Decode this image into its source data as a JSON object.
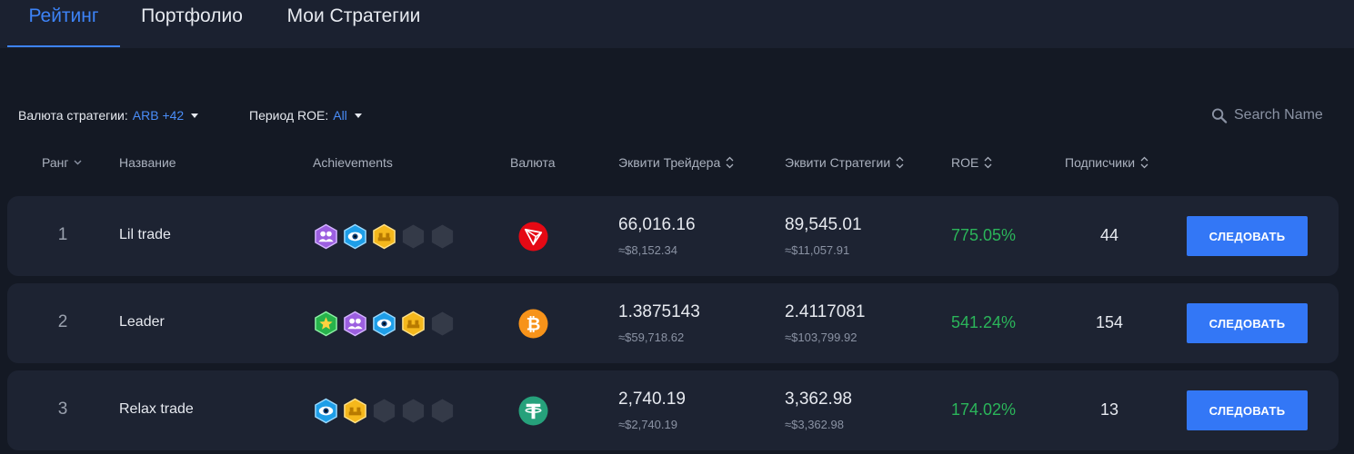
{
  "tabs": [
    {
      "label": "Рейтинг",
      "active": true
    },
    {
      "label": "Портфолио",
      "active": false
    },
    {
      "label": "Мои Стратегии",
      "active": false
    }
  ],
  "filters": {
    "currency": {
      "label": "Валюта стратегии:",
      "value": "ARB +42"
    },
    "period": {
      "label": "Период ROE:",
      "value": "All"
    }
  },
  "search": {
    "placeholder": "Search Name",
    "icon": "search-icon"
  },
  "columns": {
    "rank": "Ранг",
    "name": "Название",
    "achievements": "Achievements",
    "currency": "Валюта",
    "trader_equity": "Эквити Трейдера",
    "strategy_equity": "Эквити Стратегии",
    "roe": "ROE",
    "subscribers": "Подписчики"
  },
  "rows": [
    {
      "rank": "1",
      "name": "Lil trade",
      "achievements": [
        "users-badge",
        "eye-badge",
        "gold-stack-badge",
        "empty",
        "empty"
      ],
      "coin": "tron",
      "trader_equity": "66,016.16",
      "trader_equity_usd": "≈$8,152.34",
      "strategy_equity": "89,545.01",
      "strategy_equity_usd": "≈$11,057.91",
      "roe": "775.05%",
      "subscribers": "44",
      "action": "СЛЕДОВАТЬ"
    },
    {
      "rank": "2",
      "name": "Leader",
      "achievements": [
        "star-badge",
        "users-badge",
        "eye-badge",
        "gold-stack-badge",
        "empty"
      ],
      "coin": "bitcoin",
      "trader_equity": "1.3875143",
      "trader_equity_usd": "≈$59,718.62",
      "strategy_equity": "2.4117081",
      "strategy_equity_usd": "≈$103,799.92",
      "roe": "541.24%",
      "subscribers": "154",
      "action": "СЛЕДОВАТЬ"
    },
    {
      "rank": "3",
      "name": "Relax trade",
      "achievements": [
        "eye-badge",
        "gold-stack-badge",
        "empty",
        "empty",
        "empty"
      ],
      "coin": "tether",
      "trader_equity": "2,740.19",
      "trader_equity_usd": "≈$2,740.19",
      "strategy_equity": "3,362.98",
      "strategy_equity_usd": "≈$3,362.98",
      "roe": "174.02%",
      "subscribers": "13",
      "action": "СЛЕДОВАТЬ"
    }
  ],
  "colors": {
    "accent": "#3d83f7",
    "positive": "#2bb55a",
    "background": "#141924",
    "row": "#1d2332"
  }
}
